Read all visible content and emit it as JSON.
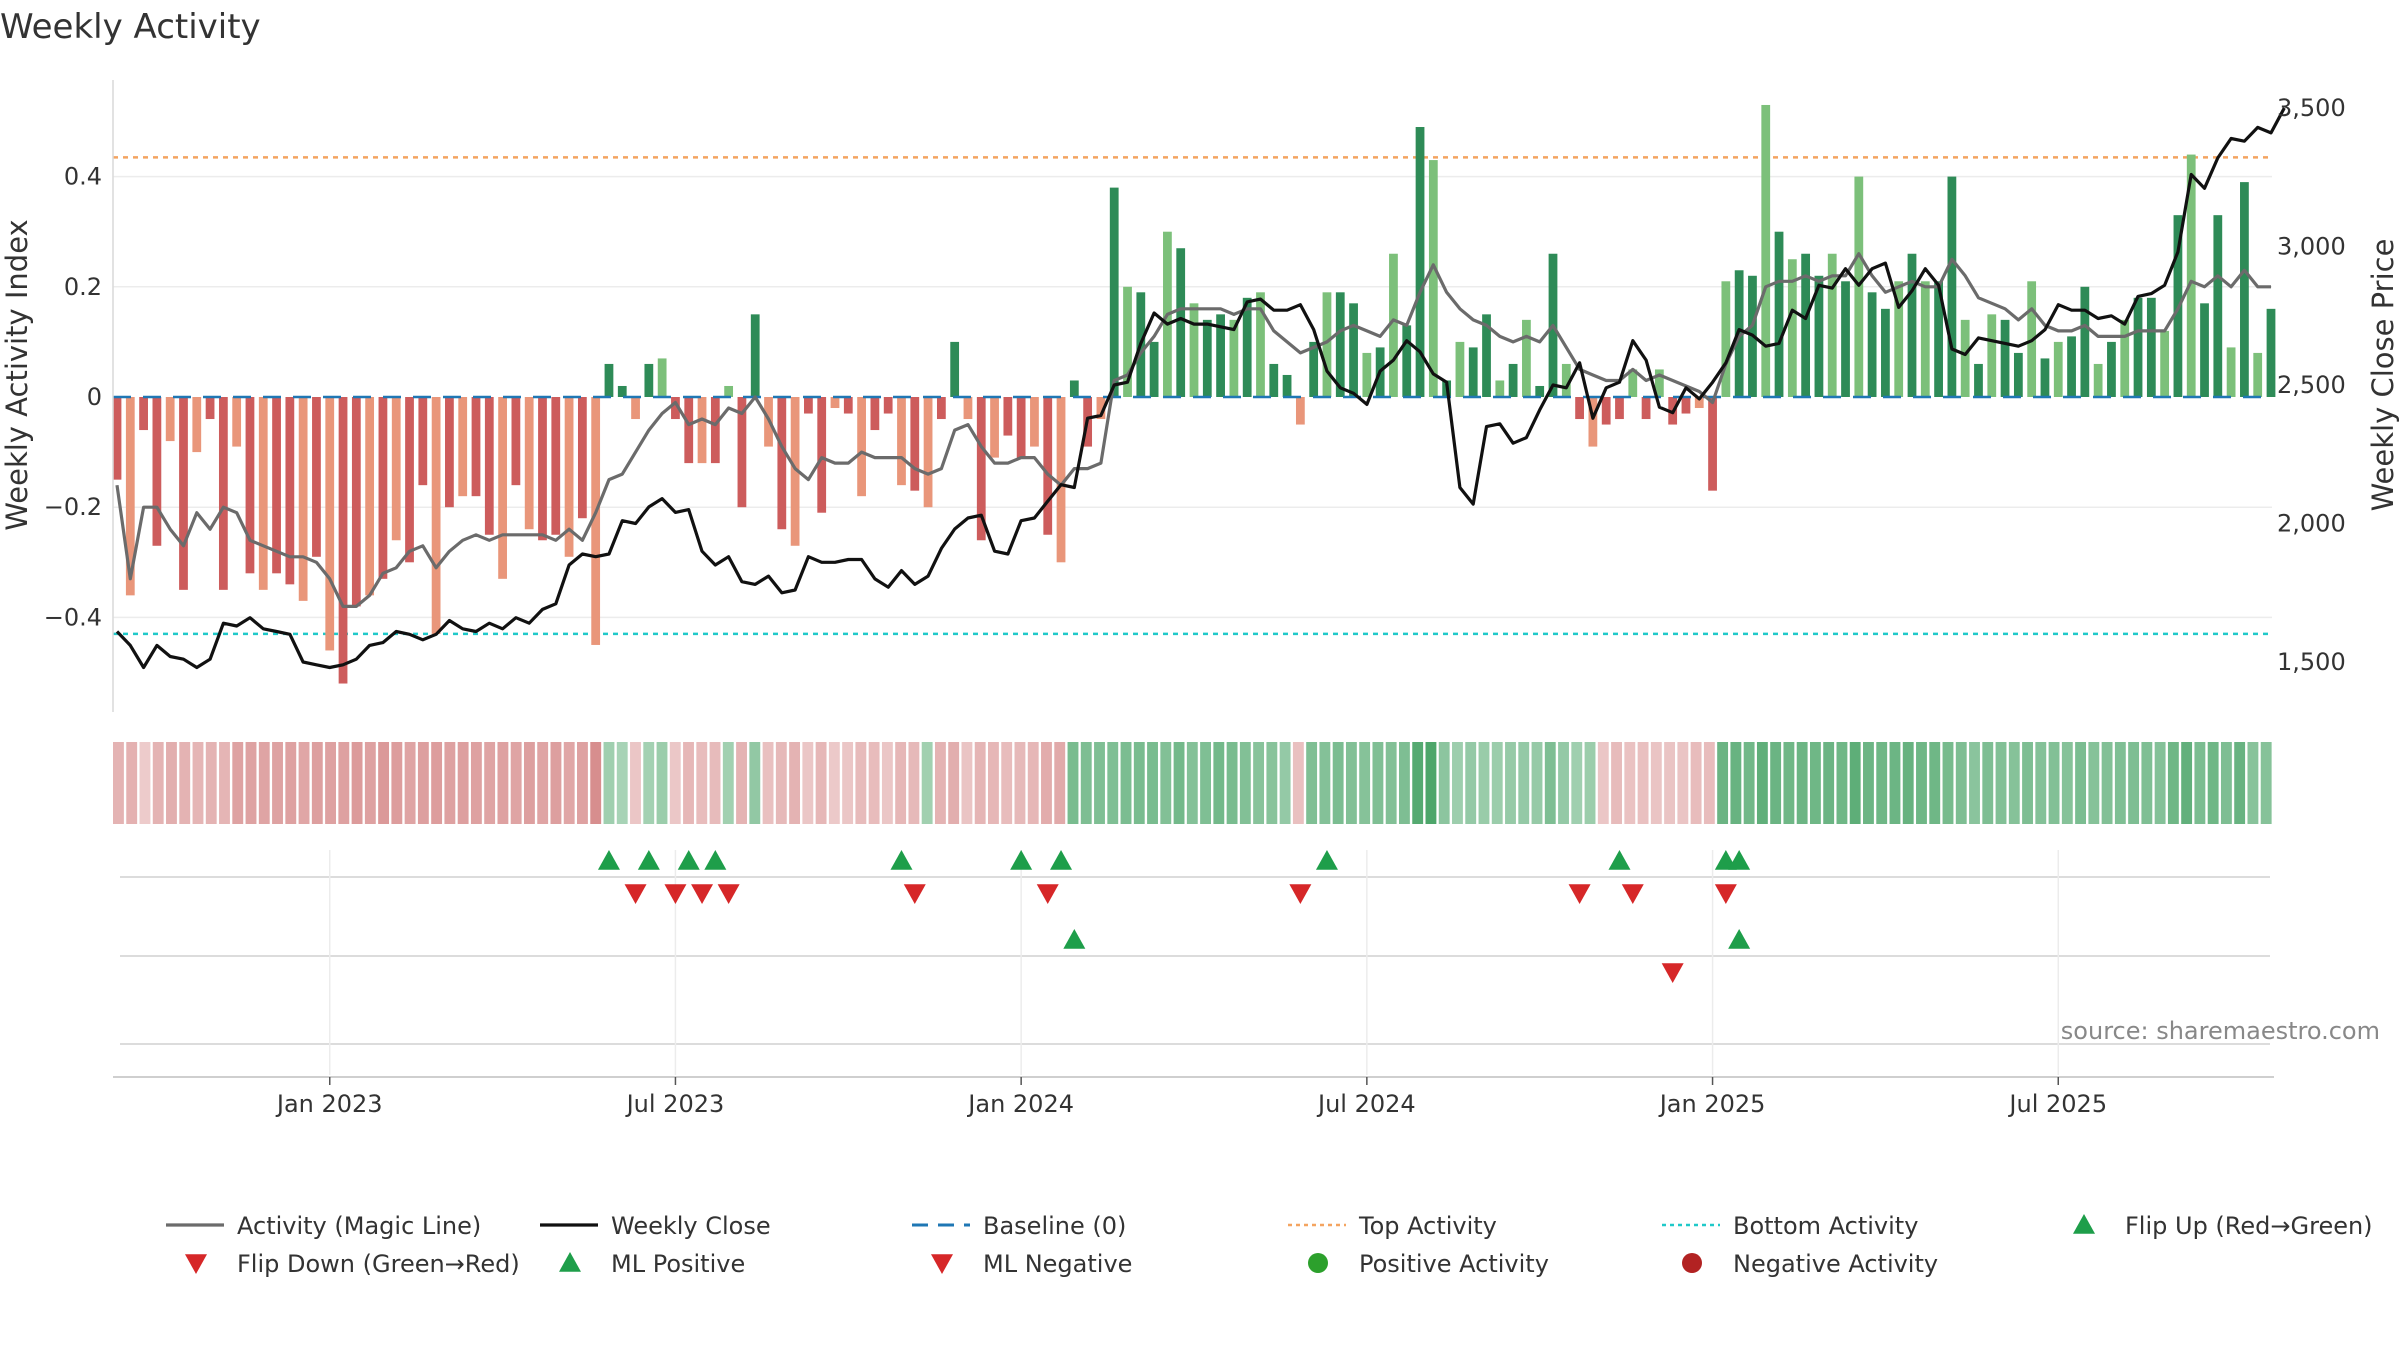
{
  "chart_data": {
    "type": "bar",
    "title": "Weekly Activity",
    "ylabel": "Weekly Activity Index",
    "y2label": "Weekly Close Price",
    "ylim": [
      -0.57,
      0.57
    ],
    "y2lim": [
      1300,
      3600
    ],
    "y_ticks": [
      {
        "v": 0.4,
        "t": "0.4"
      },
      {
        "v": 0.2,
        "t": "0.2"
      },
      {
        "v": 0,
        "t": "0"
      },
      {
        "v": -0.2,
        "t": "−0.2"
      },
      {
        "v": -0.4,
        "t": "−0.4"
      }
    ],
    "y2_ticks": [
      {
        "v": 3500,
        "t": "3,500"
      },
      {
        "v": 3000,
        "t": "3,000"
      },
      {
        "v": 2500,
        "t": "2,500"
      },
      {
        "v": 2000,
        "t": "2,000"
      },
      {
        "v": 1500,
        "t": "1,500"
      }
    ],
    "x_ticks": [
      {
        "i": 16,
        "t": "Jan 2023"
      },
      {
        "i": 42,
        "t": "Jul 2023"
      },
      {
        "i": 68,
        "t": "Jan 2024"
      },
      {
        "i": 94,
        "t": "Jul 2024"
      },
      {
        "i": 120,
        "t": "Jan 2025"
      },
      {
        "i": 146,
        "t": "Jul 2025"
      }
    ],
    "top_activity": 0.435,
    "bottom_activity": -0.43,
    "baseline": 0,
    "activity": [
      -0.15,
      -0.36,
      -0.06,
      -0.27,
      -0.08,
      -0.35,
      -0.1,
      -0.04,
      -0.35,
      -0.09,
      -0.32,
      -0.35,
      -0.32,
      -0.34,
      -0.37,
      -0.29,
      -0.46,
      -0.52,
      -0.38,
      -0.36,
      -0.33,
      -0.26,
      -0.3,
      -0.16,
      -0.43,
      -0.2,
      -0.18,
      -0.18,
      -0.25,
      -0.33,
      -0.16,
      -0.24,
      -0.26,
      -0.25,
      -0.29,
      -0.22,
      -0.45,
      0.06,
      0.02,
      -0.04,
      0.06,
      0.07,
      -0.04,
      -0.12,
      -0.12,
      -0.12,
      0.02,
      -0.2,
      0.15,
      -0.09,
      -0.24,
      -0.27,
      -0.03,
      -0.21,
      -0.02,
      -0.03,
      -0.18,
      -0.06,
      -0.03,
      -0.16,
      -0.17,
      -0.2,
      -0.04,
      0.1,
      -0.04,
      -0.26,
      -0.11,
      -0.07,
      -0.11,
      -0.09,
      -0.25,
      -0.3,
      0.03,
      -0.09,
      -0.04,
      0.38,
      0.2,
      0.19,
      0.1,
      0.3,
      0.27,
      0.17,
      0.14,
      0.15,
      0.14,
      0.18,
      0.19,
      0.06,
      0.04,
      -0.05,
      0.1,
      0.19,
      0.19,
      0.17,
      0.08,
      0.09,
      0.26,
      0.13,
      0.49,
      0.43,
      0.03,
      0.1,
      0.09,
      0.15,
      0.03,
      0.06,
      0.14,
      0.02,
      0.26,
      0.06,
      -0.04,
      -0.09,
      -0.05,
      -0.04,
      0.05,
      -0.04,
      0.05,
      -0.05,
      -0.03,
      -0.02,
      -0.17,
      0.21,
      0.23,
      0.22,
      0.53,
      0.3,
      0.25,
      0.26,
      0.22,
      0.26,
      0.21,
      0.4,
      0.19,
      0.16,
      0.21,
      0.26,
      0.21,
      0.21,
      0.4,
      0.14,
      0.06,
      0.15,
      0.14,
      0.08,
      0.21,
      0.07,
      0.1,
      0.11,
      0.2,
      0.06,
      0.1,
      0.14,
      0.18,
      0.18,
      0.12,
      0.33,
      0.44,
      0.17,
      0.33,
      0.09,
      0.39,
      0.08,
      0.16
    ],
    "magic_line": [
      -0.16,
      -0.33,
      -0.2,
      -0.2,
      -0.24,
      -0.27,
      -0.21,
      -0.24,
      -0.2,
      -0.21,
      -0.26,
      -0.27,
      -0.28,
      -0.29,
      -0.29,
      -0.3,
      -0.33,
      -0.38,
      -0.38,
      -0.36,
      -0.32,
      -0.31,
      -0.28,
      -0.27,
      -0.31,
      -0.28,
      -0.26,
      -0.25,
      -0.26,
      -0.25,
      -0.25,
      -0.25,
      -0.25,
      -0.26,
      -0.24,
      -0.26,
      -0.21,
      -0.15,
      -0.14,
      -0.1,
      -0.06,
      -0.03,
      -0.01,
      -0.05,
      -0.04,
      -0.05,
      -0.02,
      -0.03,
      0.0,
      -0.04,
      -0.09,
      -0.13,
      -0.15,
      -0.11,
      -0.12,
      -0.12,
      -0.1,
      -0.11,
      -0.11,
      -0.11,
      -0.13,
      -0.14,
      -0.13,
      -0.06,
      -0.05,
      -0.09,
      -0.12,
      -0.12,
      -0.11,
      -0.11,
      -0.14,
      -0.16,
      -0.13,
      -0.13,
      -0.12,
      0.03,
      0.04,
      0.08,
      0.11,
      0.15,
      0.16,
      0.16,
      0.16,
      0.16,
      0.15,
      0.16,
      0.16,
      0.12,
      0.1,
      0.08,
      0.09,
      0.1,
      0.12,
      0.13,
      0.12,
      0.11,
      0.14,
      0.13,
      0.19,
      0.24,
      0.19,
      0.16,
      0.14,
      0.13,
      0.11,
      0.1,
      0.11,
      0.1,
      0.13,
      0.09,
      0.05,
      0.04,
      0.03,
      0.03,
      0.05,
      0.03,
      0.04,
      0.03,
      0.02,
      0.01,
      -0.01,
      0.06,
      0.11,
      0.13,
      0.2,
      0.21,
      0.21,
      0.22,
      0.21,
      0.22,
      0.22,
      0.26,
      0.22,
      0.19,
      0.2,
      0.21,
      0.2,
      0.2,
      0.25,
      0.22,
      0.18,
      0.17,
      0.16,
      0.14,
      0.16,
      0.13,
      0.12,
      0.12,
      0.13,
      0.11,
      0.11,
      0.11,
      0.12,
      0.12,
      0.12,
      0.16,
      0.21,
      0.2,
      0.22,
      0.2,
      0.23,
      0.2,
      0.2
    ],
    "weekly_close": [
      1610,
      1560,
      1480,
      1560,
      1520,
      1510,
      1480,
      1510,
      1640,
      1630,
      1660,
      1620,
      1610,
      1600,
      1500,
      1490,
      1480,
      1490,
      1510,
      1560,
      1570,
      1610,
      1600,
      1580,
      1600,
      1650,
      1620,
      1610,
      1640,
      1620,
      1660,
      1640,
      1690,
      1710,
      1850,
      1890,
      1880,
      1890,
      2010,
      2000,
      2060,
      2090,
      2040,
      2050,
      1900,
      1850,
      1880,
      1790,
      1780,
      1810,
      1750,
      1760,
      1880,
      1860,
      1860,
      1870,
      1870,
      1800,
      1770,
      1830,
      1780,
      1810,
      1910,
      1980,
      2020,
      2030,
      1900,
      1890,
      2010,
      2020,
      2080,
      2140,
      2130,
      2380,
      2390,
      2500,
      2510,
      2650,
      2760,
      2720,
      2740,
      2720,
      2720,
      2710,
      2700,
      2800,
      2810,
      2770,
      2770,
      2790,
      2700,
      2550,
      2490,
      2470,
      2430,
      2550,
      2590,
      2660,
      2620,
      2540,
      2510,
      2130,
      2070,
      2350,
      2360,
      2290,
      2310,
      2410,
      2500,
      2490,
      2580,
      2380,
      2490,
      2510,
      2660,
      2590,
      2420,
      2400,
      2490,
      2450,
      2510,
      2580,
      2700,
      2680,
      2640,
      2650,
      2770,
      2740,
      2860,
      2850,
      2920,
      2860,
      2920,
      2940,
      2780,
      2840,
      2920,
      2860,
      2630,
      2610,
      2670,
      2660,
      2650,
      2640,
      2660,
      2700,
      2790,
      2770,
      2770,
      2740,
      2750,
      2720,
      2820,
      2830,
      2860,
      2980,
      3260,
      3210,
      3320,
      3390,
      3380,
      3430,
      3410,
      3500
    ],
    "flip_up": [
      37,
      40,
      43,
      45,
      59,
      68,
      71,
      91,
      113,
      121,
      122
    ],
    "flip_down": [
      39,
      42,
      44,
      46,
      60,
      70,
      89,
      110,
      114,
      121
    ],
    "ml_positive": [
      72,
      122
    ],
    "ml_negative": [
      117
    ],
    "intensity_strip": [
      -0.34,
      -0.36,
      -0.16,
      -0.34,
      -0.38,
      -0.35,
      -0.33,
      -0.35,
      -0.33,
      -0.47,
      -0.47,
      -0.45,
      -0.47,
      -0.49,
      -0.44,
      -0.5,
      -0.48,
      -0.49,
      -0.53,
      -0.49,
      -0.54,
      -0.51,
      -0.45,
      -0.5,
      -0.51,
      -0.48,
      -0.5,
      -0.48,
      -0.46,
      -0.49,
      -0.45,
      -0.5,
      -0.46,
      -0.5,
      -0.44,
      -0.48,
      -0.62,
      0.25,
      0.21,
      -0.2,
      0.23,
      0.27,
      -0.19,
      -0.32,
      -0.28,
      -0.29,
      0.24,
      -0.35,
      0.32,
      -0.25,
      -0.3,
      -0.34,
      -0.2,
      -0.31,
      -0.18,
      -0.2,
      -0.29,
      -0.28,
      -0.2,
      -0.32,
      -0.3,
      0.24,
      -0.34,
      -0.39,
      -0.22,
      -0.33,
      -0.31,
      -0.28,
      -0.3,
      -0.31,
      -0.4,
      -0.42,
      0.44,
      0.42,
      0.41,
      0.41,
      0.43,
      0.44,
      0.44,
      0.4,
      0.47,
      0.39,
      0.41,
      0.47,
      0.44,
      0.4,
      0.37,
      0.37,
      0.3,
      -0.24,
      0.41,
      0.39,
      0.43,
      0.4,
      0.38,
      0.41,
      0.4,
      0.42,
      0.62,
      0.66,
      0.35,
      0.26,
      0.3,
      0.28,
      0.27,
      0.29,
      0.31,
      0.29,
      0.42,
      0.31,
      0.25,
      0.27,
      -0.21,
      -0.29,
      -0.23,
      -0.24,
      -0.22,
      -0.22,
      -0.22,
      -0.27,
      -0.28,
      0.52,
      0.53,
      0.48,
      0.57,
      0.52,
      0.5,
      0.51,
      0.5,
      0.52,
      0.5,
      0.58,
      0.51,
      0.49,
      0.51,
      0.54,
      0.5,
      0.49,
      0.45,
      0.42,
      0.36,
      0.42,
      0.4,
      0.38,
      0.42,
      0.39,
      0.4,
      0.38,
      0.43,
      0.38,
      0.4,
      0.41,
      0.42,
      0.41,
      0.39,
      0.49,
      0.56,
      0.43,
      0.5,
      0.42,
      0.53,
      0.37,
      0.38
    ],
    "colors": {
      "pos_strong": "#2e8b57",
      "pos_weak": "#7cc07a",
      "neg_strong": "#cd5c5c",
      "neg_weak": "#e9967a",
      "magic_line": "#6b6b6b",
      "close_line": "#111111",
      "baseline": "#1f77b4",
      "top_line": "#f4a460",
      "bottom_line": "#20c9c9",
      "up_marker": "#1e9e4a",
      "down_marker": "#d62728",
      "pos_dot": "#2ca02c",
      "neg_dot": "#b22222"
    }
  },
  "source": "source: sharemaestro.com",
  "legend": [
    {
      "label": "Activity (Magic Line)",
      "type": "line",
      "color": "#6b6b6b"
    },
    {
      "label": "Weekly Close",
      "type": "line",
      "color": "#111111"
    },
    {
      "label": "Baseline (0)",
      "type": "dash",
      "color": "#1f77b4"
    },
    {
      "label": "Top Activity",
      "type": "dot",
      "color": "#f4a460"
    },
    {
      "label": "Bottom Activity",
      "type": "dot",
      "color": "#20c9c9"
    },
    {
      "label": "Flip Up (Red→Green)",
      "type": "up",
      "color": "#1e9e4a"
    },
    {
      "label": "Flip Down (Green→Red)",
      "type": "down",
      "color": "#d62728"
    },
    {
      "label": "ML Positive",
      "type": "up",
      "color": "#1e9e4a"
    },
    {
      "label": "ML Negative",
      "type": "down",
      "color": "#d62728"
    },
    {
      "label": "Positive Activity",
      "type": "circle",
      "color": "#2ca02c"
    },
    {
      "label": "Negative Activity",
      "type": "circle",
      "color": "#b22222"
    }
  ]
}
